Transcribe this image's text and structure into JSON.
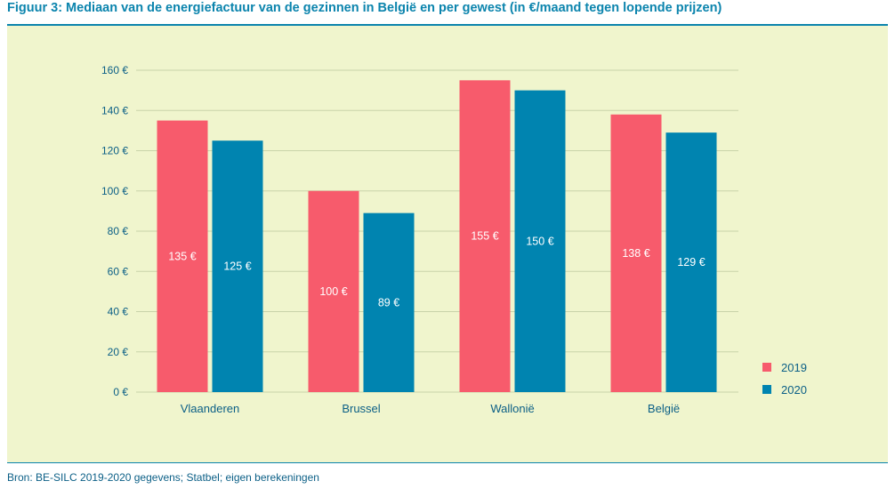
{
  "title": "Figuur 3: Mediaan van de energiefactuur van de gezinnen in België en per gewest (in €/maand tegen lopende prijzen)",
  "source": "Bron: BE-SILC 2019-2020 gegevens; Statbel; eigen berekeningen",
  "colors": {
    "s2019": "#f75b6c",
    "s2020": "#0084b0",
    "axis_text": "#0b5f86",
    "grid": "#c9d3a9",
    "panel": "#f0f5cd"
  },
  "chart_data": {
    "type": "bar",
    "categories": [
      "Vlaanderen",
      "Brussel",
      "Wallonië",
      "België"
    ],
    "series": [
      {
        "name": "2019",
        "values": [
          135,
          100,
          155,
          138
        ],
        "labels": [
          "135 €",
          "100 €",
          "155 €",
          "138 €"
        ]
      },
      {
        "name": "2020",
        "values": [
          125,
          89,
          150,
          129
        ],
        "labels": [
          "125 €",
          "89 €",
          "150 €",
          "129 €"
        ]
      }
    ],
    "ylim": [
      0,
      160
    ],
    "yticks": [
      {
        "value": 0,
        "label": "0 €"
      },
      {
        "value": 20,
        "label": "20 €"
      },
      {
        "value": 40,
        "label": "40 €"
      },
      {
        "value": 60,
        "label": "60 €"
      },
      {
        "value": 80,
        "label": "80 €"
      },
      {
        "value": 100,
        "label": "100 €"
      },
      {
        "value": 120,
        "label": "120 €"
      },
      {
        "value": 140,
        "label": "140 €"
      },
      {
        "value": 160,
        "label": "160 €"
      }
    ],
    "grid": true,
    "legend_position": "bottom-right"
  }
}
